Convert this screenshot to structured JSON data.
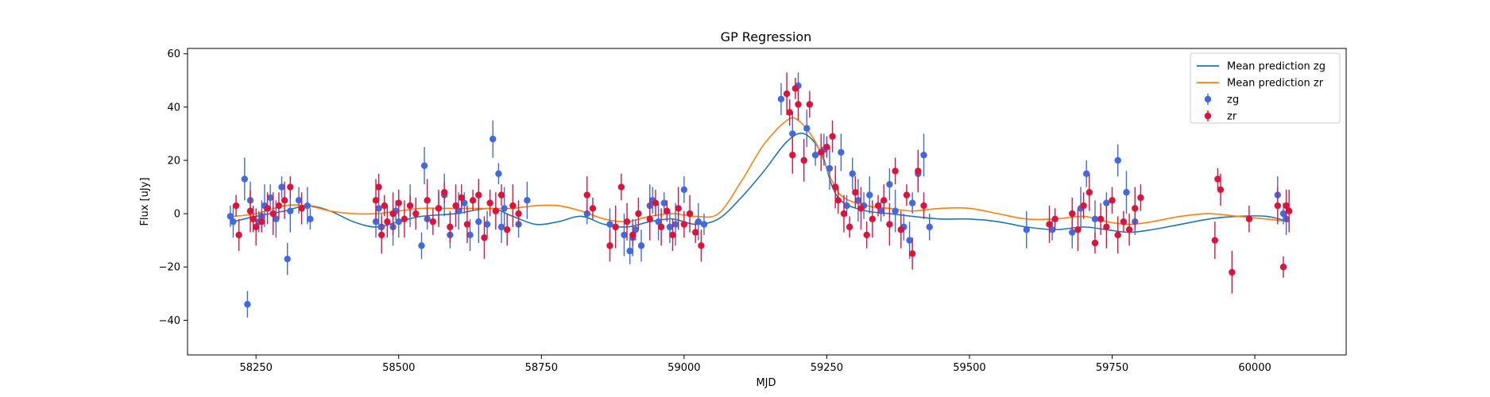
{
  "chart_data": {
    "type": "scatter",
    "title": "GP Regression",
    "xlabel": "MJD",
    "ylabel": "Flux [uJy]",
    "xlim": [
      58130,
      60160
    ],
    "ylim": [
      -53,
      62
    ],
    "xticks": [
      58250,
      58500,
      58750,
      59000,
      59250,
      59500,
      59750,
      60000
    ],
    "yticks": [
      -40,
      -20,
      0,
      20,
      40,
      60
    ],
    "legend_position": "top-right",
    "lines": [
      {
        "name": "Mean prediction zg",
        "color": "#1f77b4",
        "x": [
          58210,
          58250,
          58300,
          58340,
          58380,
          58420,
          58460,
          58500,
          58540,
          58600,
          58660,
          58700,
          58740,
          58780,
          58820,
          58860,
          58900,
          58940,
          58980,
          59020,
          59060,
          59100,
          59140,
          59180,
          59210,
          59240,
          59260,
          59280,
          59320,
          59360,
          59400,
          59450,
          59500,
          59550,
          59600,
          59650,
          59700,
          59740,
          59780,
          59820,
          59870,
          59920,
          59970,
          60020,
          60060
        ],
        "y": [
          -3,
          -1,
          1,
          3,
          1,
          -3,
          -5,
          -3,
          -1,
          0,
          2,
          -1,
          -4,
          -3,
          -1,
          -4,
          -5,
          -3,
          -2,
          -4,
          -2,
          6,
          16,
          27,
          30,
          23,
          10,
          4,
          1,
          0,
          -1,
          -2,
          -2,
          -3,
          -5,
          -6,
          -5,
          -6,
          -7,
          -6,
          -4,
          -2,
          -1,
          -1,
          -3
        ]
      },
      {
        "name": "Mean prediction zr",
        "color": "#ff7f0e",
        "x": [
          58210,
          58250,
          58300,
          58340,
          58380,
          58420,
          58460,
          58500,
          58540,
          58600,
          58660,
          58700,
          58740,
          58780,
          58820,
          58860,
          58900,
          58940,
          58980,
          59020,
          59060,
          59100,
          59140,
          59180,
          59200,
          59230,
          59260,
          59280,
          59320,
          59360,
          59400,
          59450,
          59500,
          59550,
          59600,
          59650,
          59700,
          59740,
          59780,
          59820,
          59870,
          59920,
          59970,
          60020,
          60060
        ],
        "y": [
          -1,
          0,
          3,
          3,
          1,
          0,
          0,
          1,
          2,
          2,
          2,
          2,
          3,
          3,
          1,
          -2,
          -3,
          -1,
          0,
          -1,
          0,
          12,
          26,
          35,
          35,
          27,
          12,
          6,
          3,
          2,
          1,
          2,
          2,
          0,
          -2,
          -2,
          -1,
          -3,
          -4,
          -3,
          -1,
          0,
          -1,
          -2,
          -3
        ]
      }
    ],
    "series": [
      {
        "name": "zg",
        "color": "#4169e1",
        "x": [
          58205,
          58210,
          58230,
          58235,
          58240,
          58255,
          58260,
          58265,
          58275,
          58285,
          58295,
          58305,
          58310,
          58325,
          58340,
          58345,
          58460,
          58465,
          58470,
          58490,
          58495,
          58500,
          58520,
          58540,
          58545,
          58550,
          58570,
          58580,
          58590,
          58605,
          58615,
          58625,
          58640,
          58655,
          58665,
          58675,
          58680,
          58685,
          58710,
          58725,
          58830,
          58870,
          58895,
          58905,
          58910,
          58915,
          58925,
          58940,
          58945,
          58955,
          58965,
          58975,
          58985,
          59000,
          59025,
          59035,
          59170,
          59190,
          59200,
          59215,
          59230,
          59245,
          59255,
          59265,
          59275,
          59285,
          59295,
          59305,
          59315,
          59325,
          59345,
          59360,
          59370,
          59385,
          59395,
          59400,
          59410,
          59420,
          59430,
          59600,
          59645,
          59680,
          59695,
          59705,
          59720,
          59740,
          59760,
          59775,
          59790,
          60040,
          60050,
          60055
        ],
        "y": [
          -1,
          -3,
          13,
          -34,
          5,
          -3,
          -1,
          3,
          6,
          -2,
          10,
          -17,
          1,
          5,
          3,
          -2,
          -3,
          2,
          -5,
          -5,
          1,
          -3,
          3,
          -12,
          18,
          -2,
          2,
          7,
          -8,
          1,
          4,
          -8,
          -3,
          -4,
          28,
          15,
          -5,
          2,
          -4,
          5,
          0,
          -4,
          -8,
          -14,
          -9,
          -6,
          -12,
          3,
          5,
          -3,
          4,
          -5,
          -4,
          9,
          -3,
          -4,
          43,
          30,
          48,
          32,
          22,
          24,
          17,
          10,
          23,
          3,
          15,
          5,
          3,
          7,
          1,
          11,
          1,
          -5,
          -10,
          4,
          15,
          22,
          -5,
          -6,
          -6,
          -7,
          2,
          15,
          -2,
          4,
          20,
          8,
          -3,
          7,
          0,
          -2
        ]
      },
      {
        "name": "zr",
        "color": "#dc143c",
        "x": [
          58215,
          58220,
          58240,
          58245,
          58250,
          58260,
          58270,
          58280,
          58290,
          58300,
          58310,
          58330,
          58460,
          58465,
          58470,
          58475,
          58480,
          58490,
          58500,
          58510,
          58520,
          58530,
          58550,
          58560,
          58570,
          58580,
          58590,
          58600,
          58610,
          58620,
          58630,
          58640,
          58650,
          58660,
          58670,
          58680,
          58690,
          58700,
          58710,
          58830,
          58840,
          58870,
          58880,
          58890,
          58900,
          58910,
          58920,
          58940,
          58950,
          58960,
          58970,
          58980,
          58990,
          59000,
          59010,
          59020,
          59030,
          59180,
          59185,
          59190,
          59195,
          59200,
          59210,
          59220,
          59240,
          59250,
          59260,
          59265,
          59270,
          59280,
          59290,
          59300,
          59310,
          59320,
          59330,
          59340,
          59350,
          59360,
          59370,
          59380,
          59390,
          59400,
          59410,
          59420,
          59640,
          59650,
          59680,
          59690,
          59700,
          59710,
          59720,
          59730,
          59740,
          59750,
          59760,
          59770,
          59780,
          59790,
          59800,
          59930,
          59935,
          59940,
          59960,
          59990,
          60040,
          60050,
          60055,
          60060
        ],
        "y": [
          3,
          -8,
          1,
          -2,
          -5,
          -3,
          2,
          0,
          3,
          5,
          10,
          2,
          5,
          10,
          -8,
          3,
          -3,
          0,
          4,
          -2,
          3,
          0,
          5,
          -3,
          2,
          8,
          -5,
          3,
          6,
          -4,
          5,
          7,
          -9,
          4,
          1,
          7,
          -6,
          3,
          0,
          7,
          2,
          -12,
          -5,
          10,
          -3,
          -8,
          0,
          -2,
          4,
          -5,
          1,
          -8,
          2,
          -4,
          0,
          -7,
          -12,
          45,
          38,
          22,
          47,
          41,
          20,
          41,
          23,
          25,
          29,
          10,
          5,
          0,
          -5,
          8,
          2,
          -8,
          -2,
          3,
          5,
          -4,
          16,
          -6,
          7,
          -15,
          16,
          3,
          -4,
          -2,
          0,
          -6,
          3,
          8,
          -11,
          -2,
          -5,
          5,
          -8,
          -3,
          -6,
          2,
          6,
          -10,
          13,
          9,
          -22,
          -2,
          3,
          -20,
          3,
          1
        ]
      }
    ]
  }
}
